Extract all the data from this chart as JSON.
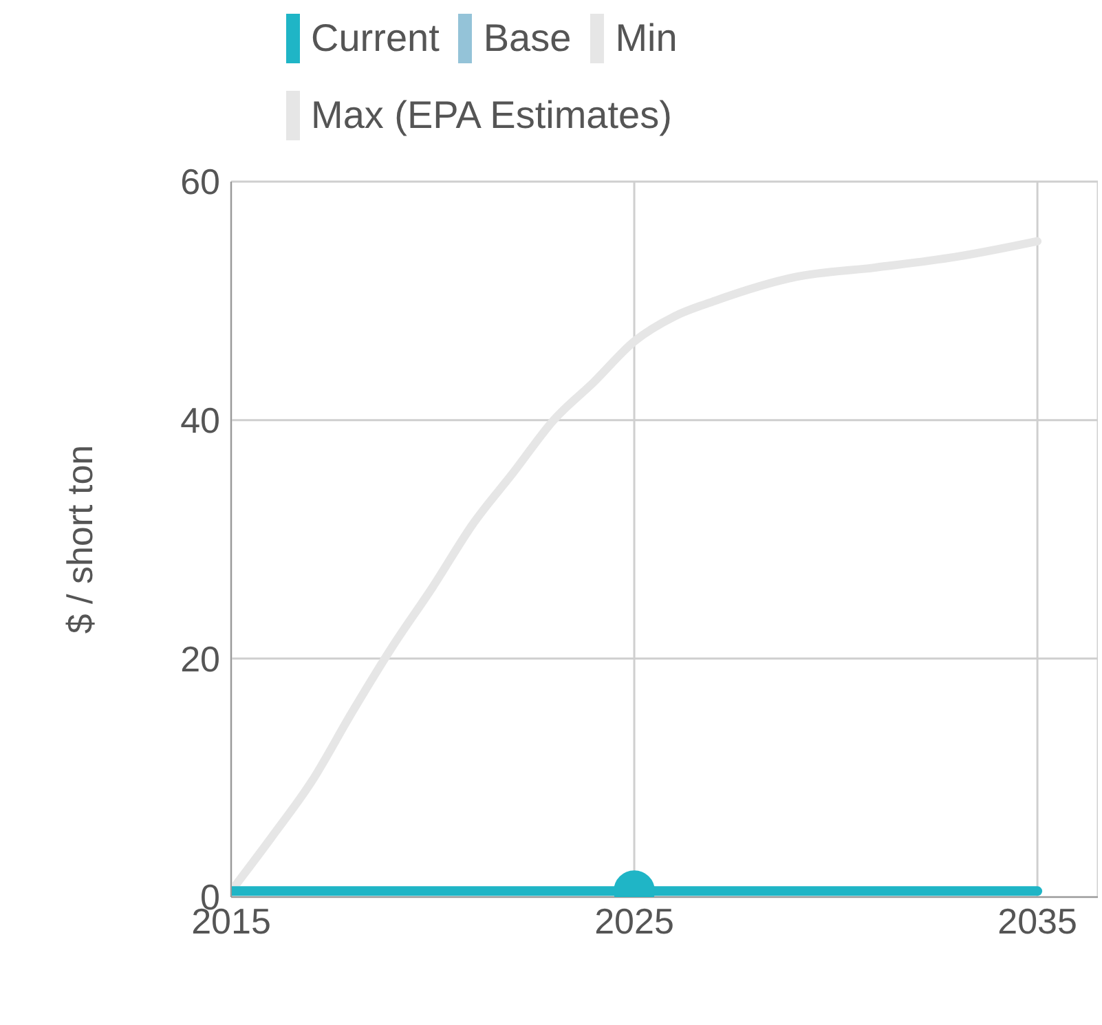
{
  "chart_data": {
    "type": "line",
    "ylabel": "$ / short ton",
    "xlim": [
      2015,
      2036.5
    ],
    "xticks": [
      2015,
      2025,
      2035
    ],
    "ylim": [
      0,
      60
    ],
    "yticks": [
      0,
      20,
      40,
      60
    ],
    "grid": true,
    "legend": "top",
    "marker": "none",
    "line_style": "solid",
    "series": [
      {
        "name": "Current",
        "color": "#1fb5c6",
        "x": [
          2015,
          2035
        ],
        "values": [
          0.5,
          0.5
        ]
      },
      {
        "name": "Base",
        "color": "#94c3d8"
      },
      {
        "name": "Min",
        "color": "#e6e6e6"
      },
      {
        "name": "Max (EPA Estimates)",
        "color": "#e6e6e6",
        "x": [
          2015,
          2016,
          2017,
          2018,
          2019,
          2020,
          2021,
          2022,
          2023,
          2024,
          2025,
          2026,
          2027,
          2029,
          2031,
          2033,
          2035
        ],
        "values": [
          0.5,
          5,
          9.7,
          15.5,
          21,
          26,
          31.3,
          35.6,
          40,
          43.2,
          46.6,
          48.7,
          50,
          52,
          52.8,
          53.7,
          55
        ]
      },
      {
        "type": "scatter",
        "marker": "circle",
        "color": "#1fb5c6",
        "x": [
          2025
        ],
        "values": [
          0.5
        ]
      }
    ]
  }
}
